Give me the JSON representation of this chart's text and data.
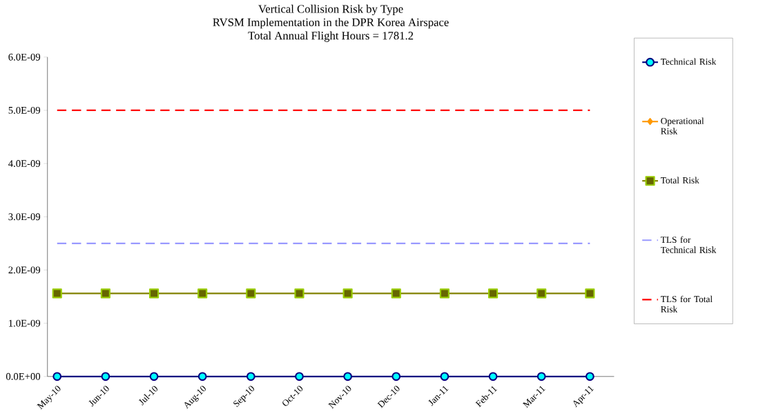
{
  "chart_data": {
    "type": "line",
    "title": "Vertical Collision Risk by Type",
    "subtitle": "RVSM Implementation in the DPR Korea Airspace",
    "annotations": [
      "Total Annual Flight Hours = 1781.2"
    ],
    "categories": [
      "May-10",
      "Jun-10",
      "Jul-10",
      "Aug-10",
      "Sep-10",
      "Oct-10",
      "Nov-10",
      "Dec-10",
      "Jan-11",
      "Feb-11",
      "Mar-11",
      "Apr-11"
    ],
    "series": [
      {
        "name": "Technical Risk",
        "color": "#000080",
        "marker": "circle",
        "line_style": "solid",
        "values": [
          0,
          0,
          0,
          0,
          0,
          0,
          0,
          0,
          0,
          0,
          0,
          0
        ]
      },
      {
        "name": "Operational Risk",
        "color": "#ff9900",
        "marker": "diamond",
        "line_style": "solid",
        "values": [
          null,
          null,
          null,
          null,
          null,
          null,
          null,
          null,
          null,
          null,
          null,
          null
        ]
      },
      {
        "name": "Total Risk",
        "color": "#808000",
        "marker": "square",
        "line_style": "solid",
        "values": [
          1.56e-09,
          1.56e-09,
          1.56e-09,
          1.56e-09,
          1.56e-09,
          1.56e-09,
          1.56e-09,
          1.56e-09,
          1.56e-09,
          1.56e-09,
          1.56e-09,
          1.56e-09
        ]
      },
      {
        "name": "TLS for Technical Risk",
        "color": "#9999ff",
        "marker": "none",
        "line_style": "dashed",
        "values": [
          2.5e-09,
          2.5e-09,
          2.5e-09,
          2.5e-09,
          2.5e-09,
          2.5e-09,
          2.5e-09,
          2.5e-09,
          2.5e-09,
          2.5e-09,
          2.5e-09,
          2.5e-09
        ]
      },
      {
        "name": "TLS for Total Risk",
        "color": "#ff0000",
        "marker": "none",
        "line_style": "dashed",
        "values": [
          5e-09,
          5e-09,
          5e-09,
          5e-09,
          5e-09,
          5e-09,
          5e-09,
          5e-09,
          5e-09,
          5e-09,
          5e-09,
          5e-09
        ]
      }
    ],
    "ylim": [
      0,
      6e-09
    ],
    "yticks": [
      {
        "value": 0,
        "label": "0.0E+00"
      },
      {
        "value": 1e-09,
        "label": "1.0E-09"
      },
      {
        "value": 2e-09,
        "label": "2.0E-09"
      },
      {
        "value": 3e-09,
        "label": "3.0E-09"
      },
      {
        "value": 4e-09,
        "label": "4.0E-09"
      },
      {
        "value": 5e-09,
        "label": "5.0E-09"
      },
      {
        "value": 6e-09,
        "label": "6.0E-09"
      }
    ],
    "grid": false,
    "legend": "right"
  }
}
